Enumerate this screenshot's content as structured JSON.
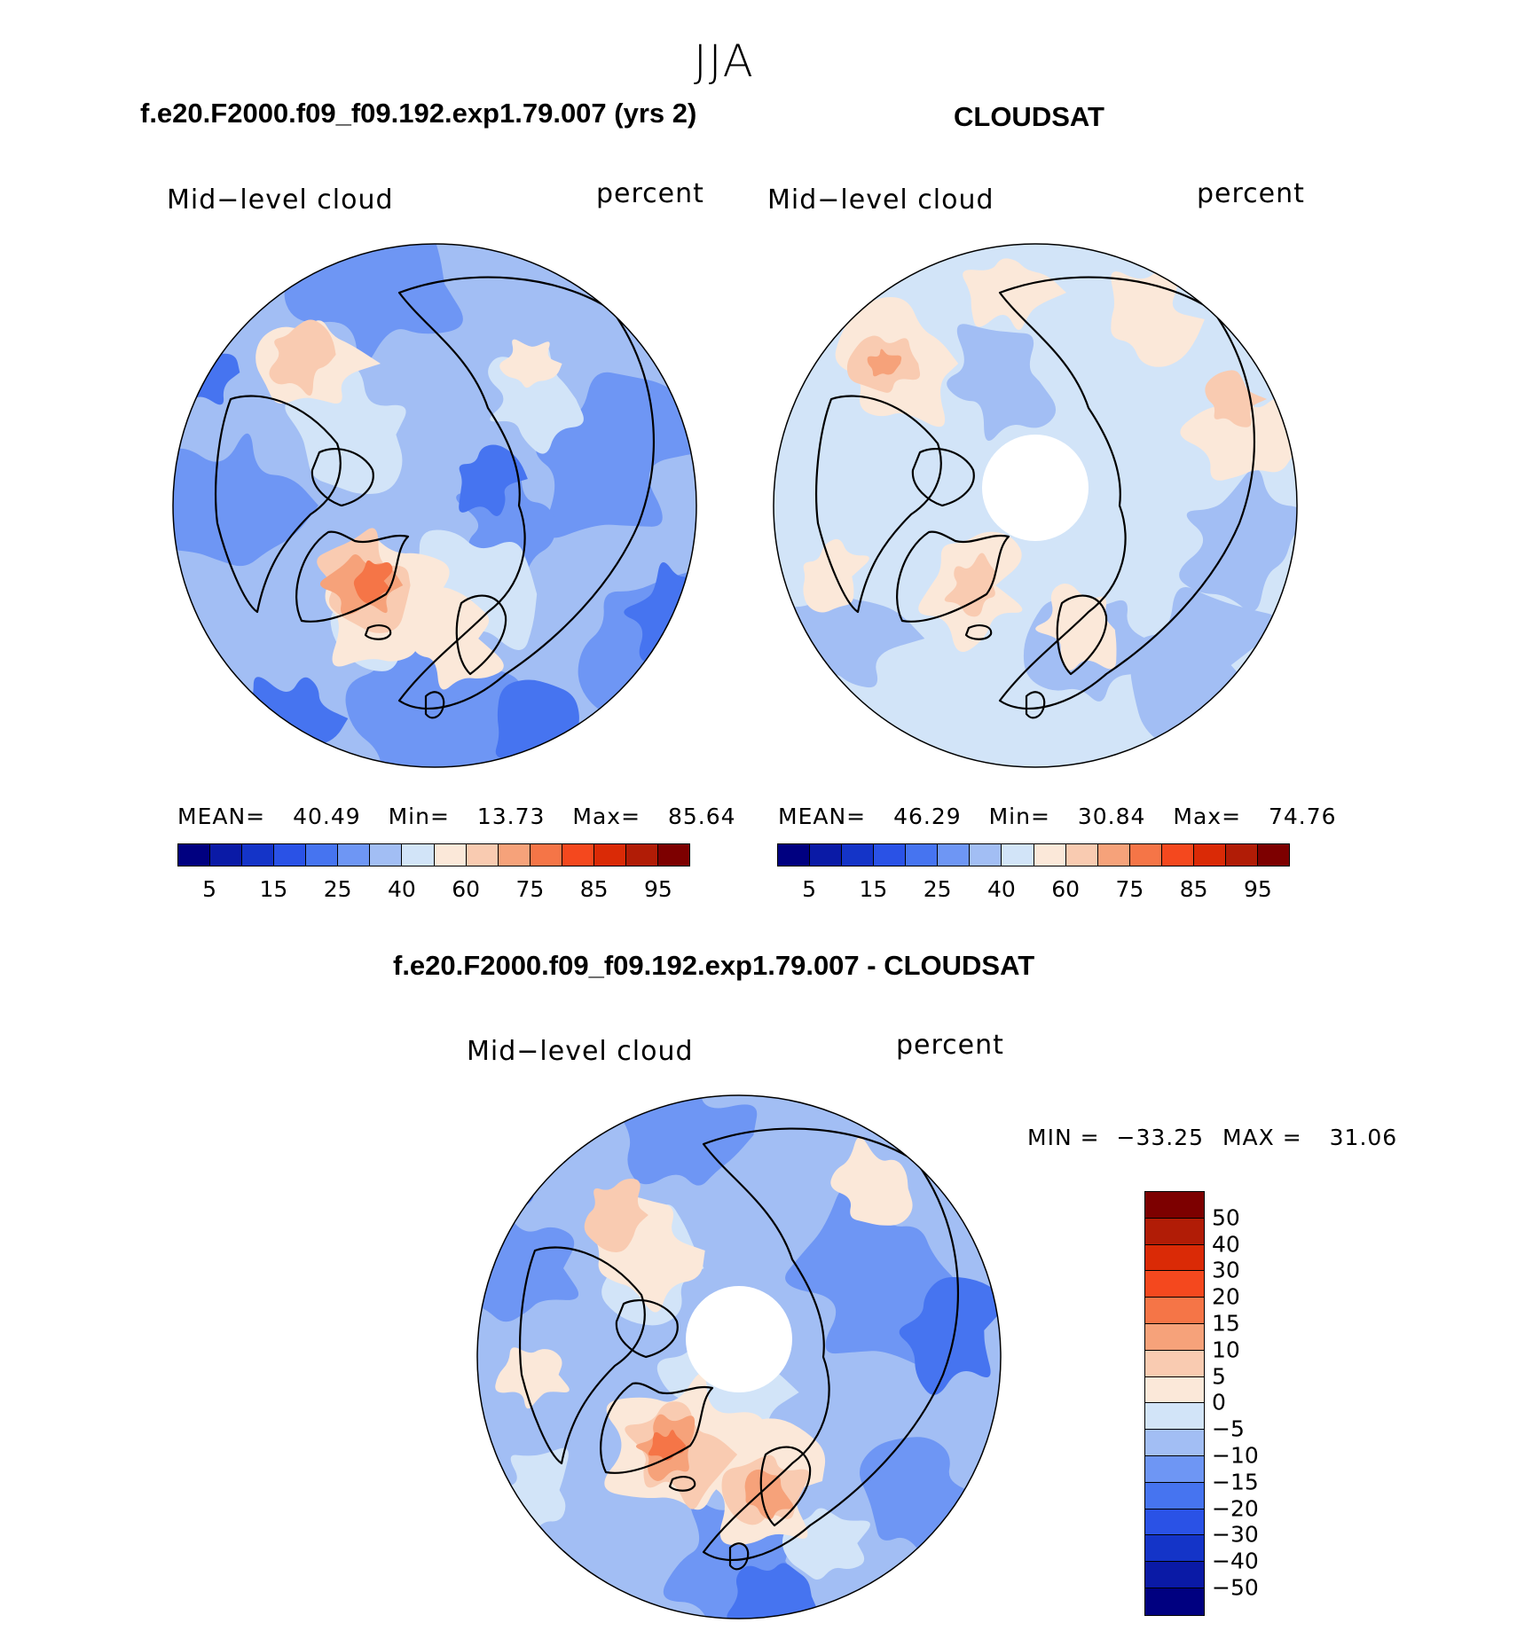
{
  "season": "JJA",
  "panels": [
    {
      "title": "f.e20.F2000.f09_f09.192.exp1.79.007 (yrs 2)",
      "variable": "Mid−level cloud",
      "units": "percent",
      "stats": {
        "mean_label": "MEAN=",
        "mean": "40.49",
        "min_label": "Min=",
        "min": "13.73",
        "max_label": "Max=",
        "max": "85.64"
      },
      "colorbar_labels": [
        "5",
        "15",
        "25",
        "40",
        "60",
        "75",
        "85",
        "95"
      ]
    },
    {
      "title": "CLOUDSAT",
      "variable": "Mid−level cloud",
      "units": "percent",
      "stats": {
        "mean_label": "MEAN=",
        "mean": "46.29",
        "min_label": "Min=",
        "min": "30.84",
        "max_label": "Max=",
        "max": "74.76"
      },
      "colorbar_labels": [
        "5",
        "15",
        "25",
        "40",
        "60",
        "75",
        "85",
        "95"
      ]
    }
  ],
  "diff": {
    "title": "f.e20.F2000.f09_f09.192.exp1.79.007 - CLOUDSAT",
    "variable": "Mid−level cloud",
    "units": "percent",
    "minmax": {
      "min_label": "MIN =",
      "min": "−33.25",
      "max_label": "MAX =",
      "max": "31.06"
    },
    "colorbar_labels": [
      "50",
      "40",
      "30",
      "20",
      "15",
      "10",
      "5",
      "0",
      "−5",
      "−10",
      "−15",
      "−20",
      "−30",
      "−40",
      "−50"
    ]
  },
  "colors": {
    "abs_scale": [
      "#000080",
      "#0a1aa6",
      "#1434c8",
      "#2a52e6",
      "#4674f0",
      "#6e96f4",
      "#a2bef4",
      "#d2e4f8",
      "#fbe8d9",
      "#f9cbb1",
      "#f6a27a",
      "#f57547",
      "#f4481e",
      "#da2a06",
      "#b11c06",
      "#7d0000"
    ],
    "diff_scale": [
      "#7d0000",
      "#b11c06",
      "#da2a06",
      "#f4481e",
      "#f57547",
      "#f6a27a",
      "#f9cbb1",
      "#fbe8d9",
      "#d2e4f8",
      "#a2bef4",
      "#6e96f4",
      "#4674f0",
      "#2a52e6",
      "#1434c8",
      "#0a1aa6",
      "#000080"
    ]
  }
}
